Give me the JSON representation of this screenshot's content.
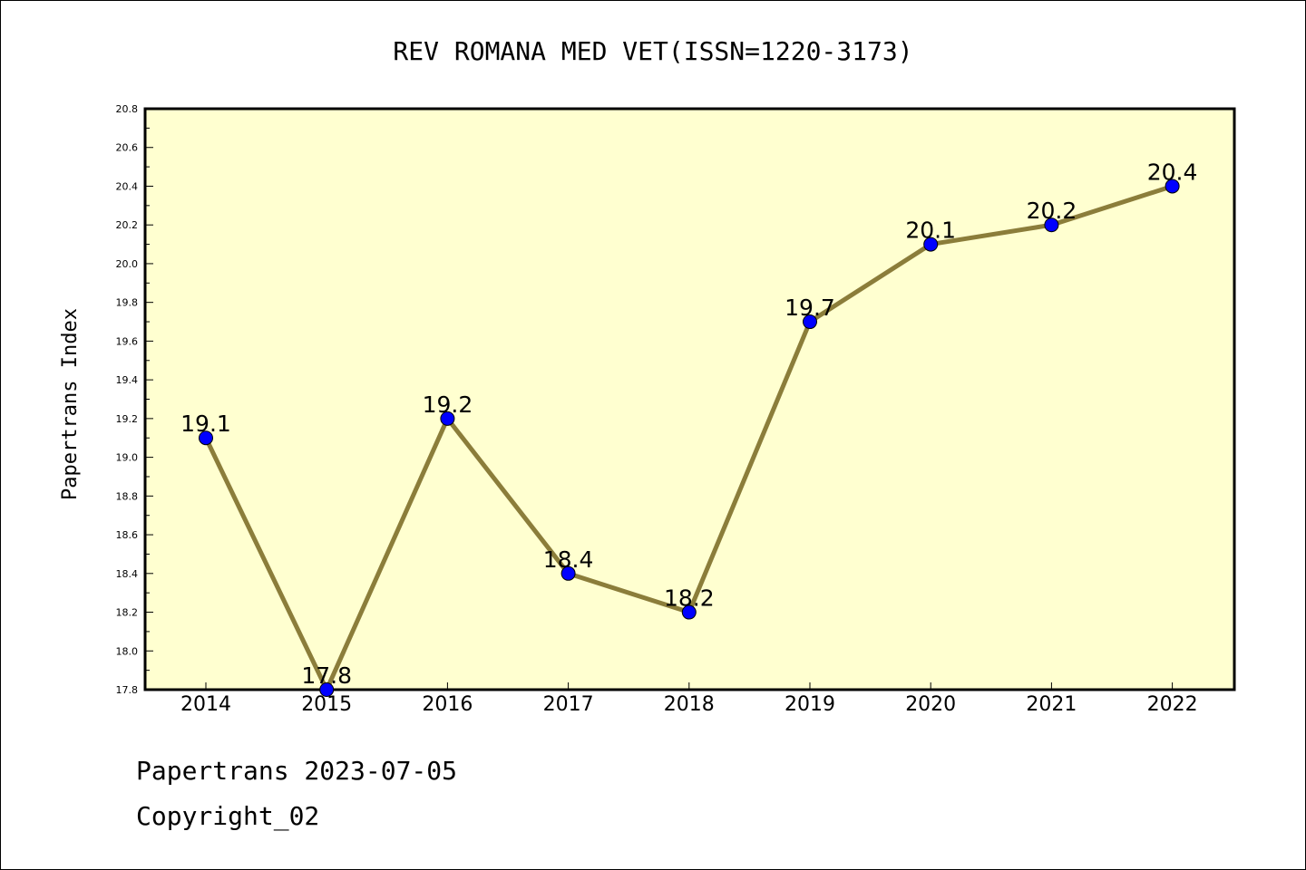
{
  "chart_data": {
    "type": "line",
    "title": "REV ROMANA MED VET(ISSN=1220-3173)",
    "xlabel": "",
    "ylabel": "Papertrans Index",
    "categories": [
      "2014",
      "2015",
      "2016",
      "2017",
      "2018",
      "2019",
      "2020",
      "2021",
      "2022"
    ],
    "values": [
      19.1,
      17.8,
      19.2,
      18.4,
      18.2,
      19.7,
      20.1,
      20.2,
      20.4
    ],
    "value_labels": [
      "19.1",
      "17.8",
      "19.2",
      "18.4",
      "18.2",
      "19.7",
      "20.1",
      "20.2",
      "20.4"
    ],
    "ylim": [
      17.8,
      20.8
    ],
    "yticks": [
      "17.8",
      "18.0",
      "18.2",
      "18.4",
      "18.6",
      "18.8",
      "19.0",
      "19.2",
      "19.4",
      "19.6",
      "19.8",
      "20.0",
      "20.2",
      "20.4",
      "20.6",
      "20.8"
    ],
    "grid": false,
    "legend": "none",
    "colors": {
      "line": "#8B7D3A",
      "marker": "#0000FF",
      "plot_background": "#FFFFD0"
    }
  },
  "footer": {
    "date_line": "Papertrans 2023-07-05",
    "copyright": "Copyright_02"
  }
}
